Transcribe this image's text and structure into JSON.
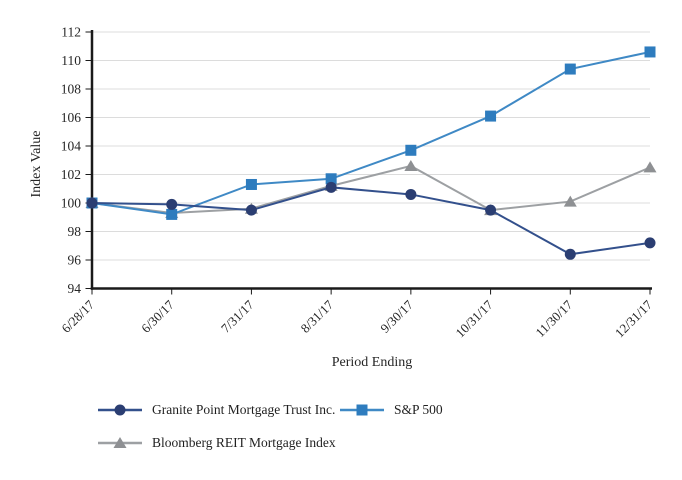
{
  "chart_data": {
    "type": "line",
    "title": "",
    "xlabel": "Period Ending",
    "ylabel": "Index Value",
    "x_categories": [
      "6/28/17",
      "6/30/17",
      "7/31/17",
      "8/31/17",
      "9/30/17",
      "10/31/17",
      "11/30/17",
      "12/31/17"
    ],
    "ylim": [
      94,
      112
    ],
    "ytick_step": 2,
    "grid": "horizontal",
    "legend_position": "bottom-left-two-rows",
    "axis_color": "#1a1a1a",
    "grid_color": "#dcdcdc",
    "text_color": "#262626",
    "series": [
      {
        "name": "Granite Point Mortgage Trust Inc.",
        "marker": "circle",
        "marker_color": "#2b3e72",
        "line_color": "#33508c",
        "values": [
          100.0,
          99.9,
          99.5,
          101.1,
          100.6,
          99.5,
          96.4,
          97.2
        ]
      },
      {
        "name": "S&P 500",
        "marker": "square",
        "marker_color": "#2e7cbe",
        "line_color": "#3f89c5",
        "values": [
          100.0,
          99.2,
          101.3,
          101.7,
          103.7,
          106.1,
          109.4,
          110.6
        ]
      },
      {
        "name": "Bloomberg REIT Mortgage Index",
        "marker": "triangle",
        "marker_color": "#8e9093",
        "line_color": "#9da0a3",
        "values": [
          100.0,
          99.3,
          99.6,
          101.2,
          102.6,
          99.5,
          100.1,
          102.5
        ]
      }
    ],
    "draw_order": [
      2,
      1,
      0
    ]
  }
}
